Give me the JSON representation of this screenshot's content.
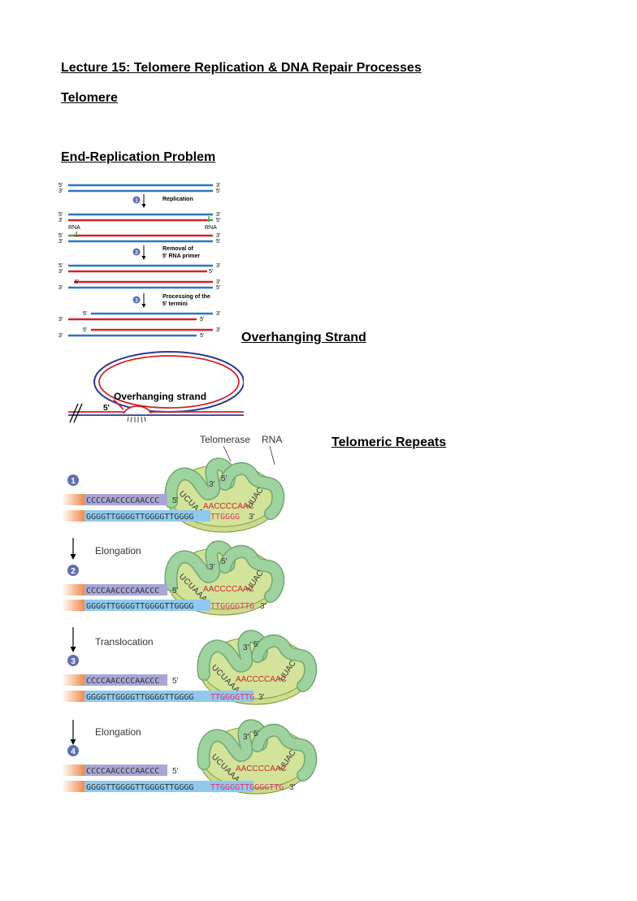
{
  "title": "Lecture 15: Telomere Replication & DNA Repair Processes",
  "sections": {
    "telomere": "Telomere",
    "end_replication": "End-Replication Problem",
    "overhanging": "Overhanging Strand",
    "telomeric_repeats": "Telomeric Repeats"
  },
  "end_replication_figure": {
    "prime5": "5'",
    "prime3": "3'",
    "rna": "RNA",
    "steps": [
      {
        "num": "1",
        "label_lines": [
          "Replication"
        ]
      },
      {
        "num": "2",
        "label_lines": [
          "Removal of",
          "5' RNA primer"
        ]
      },
      {
        "num": "3",
        "label_lines": [
          "Processing of the",
          "5' termini"
        ]
      }
    ]
  },
  "overhang_figure": {
    "label": "Overhanging strand",
    "prime5": "5'"
  },
  "telomerase_figure": {
    "telomerase_label": "Telomerase",
    "rna_label": "RNA",
    "prime3": "3'",
    "prime5": "5'",
    "rna_template_left": "UCUAAA",
    "rna_template_mid": "AACCCCAAC",
    "rna_template_right": "UUAC",
    "panels": [
      {
        "num": "1",
        "arrow_label": "",
        "top_seq": "CCCCAACCCCAACCC",
        "top_end": "5'",
        "bottom_seq": "GGGGTTGGGGTTGGGGTTGGGG",
        "bottom_new": "TTGGGG",
        "bottom_end": "3'"
      },
      {
        "num": "2",
        "arrow_label": "Elongation",
        "top_seq": "CCCCAACCCCAACCC",
        "top_end": "5'",
        "bottom_seq": "GGGGTTGGGGTTGGGGTTGGGG",
        "bottom_new": "TTGGGGTTG",
        "bottom_end": "3'"
      },
      {
        "num": "3",
        "arrow_label": "Translocation",
        "top_seq": "CCCCAACCCCAACCC",
        "top_end": "5'",
        "bottom_seq": "GGGGTTGGGGTTGGGGTTGGGG",
        "bottom_new": "TTGGGGTTG",
        "bottom_end": "3'"
      },
      {
        "num": "4",
        "arrow_label": "Elongation",
        "top_seq": "CCCCAACCCCAACCC",
        "top_end": "5'",
        "bottom_seq": "GGGGTTGGGGTTGGGGTTGGGG",
        "bottom_new": "TTGGGGTTGGGGTTG",
        "bottom_end": "3'"
      }
    ]
  },
  "colors": {
    "blue_strand": "#2f74c0",
    "red_strand": "#d2232a",
    "rna_primer": "#3aa545",
    "step_circle": "#5f6fb3",
    "top_box": "#a9a6d6",
    "bottom_box": "#8fc9ee",
    "enzyme": "#d3e39a",
    "rna_loop": "#9ed39f",
    "new_dna": "#e0306a",
    "orange": "#f08a4b"
  }
}
